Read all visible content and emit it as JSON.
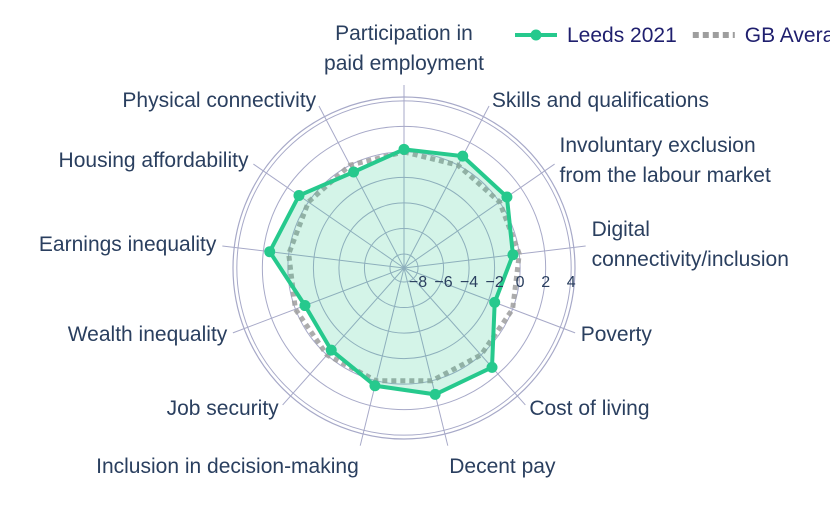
{
  "chart_data": {
    "type": "radar",
    "categories": [
      "Participation in\npaid employment",
      "Skills and qualifications",
      "Involuntary exclusion\nfrom the labour market",
      "Digital\nconnectivity/inclusion",
      "Poverty",
      "Cost of living",
      "Decent pay",
      "Inclusion in decision-making",
      "Job security",
      "Wealth inequality",
      "Earnings inequality",
      "Housing affordability",
      "Physical connectivity"
    ],
    "series": [
      {
        "name": "Leeds 2021",
        "color": "#26c98d",
        "values": [
          0.2,
          0.8,
          0.7,
          -0.5,
          -1.5,
          1.3,
          1.1,
          0.4,
          -0.5,
          -0.8,
          1.5,
          0.9,
          -0.6
        ]
      },
      {
        "name": "GB Average",
        "color": "#9e9e9e",
        "values": [
          0,
          0,
          0,
          0,
          0,
          0,
          0,
          0,
          0,
          0,
          0,
          0,
          0
        ]
      }
    ],
    "rlim": [
      -9.1,
      4.3
    ],
    "rticks": [
      {
        "value": -8,
        "label": "−8"
      },
      {
        "value": -6,
        "label": "−6"
      },
      {
        "value": -4,
        "label": "−4"
      },
      {
        "value": -2,
        "label": "−2"
      },
      0,
      2,
      4
    ],
    "grid": true
  }
}
